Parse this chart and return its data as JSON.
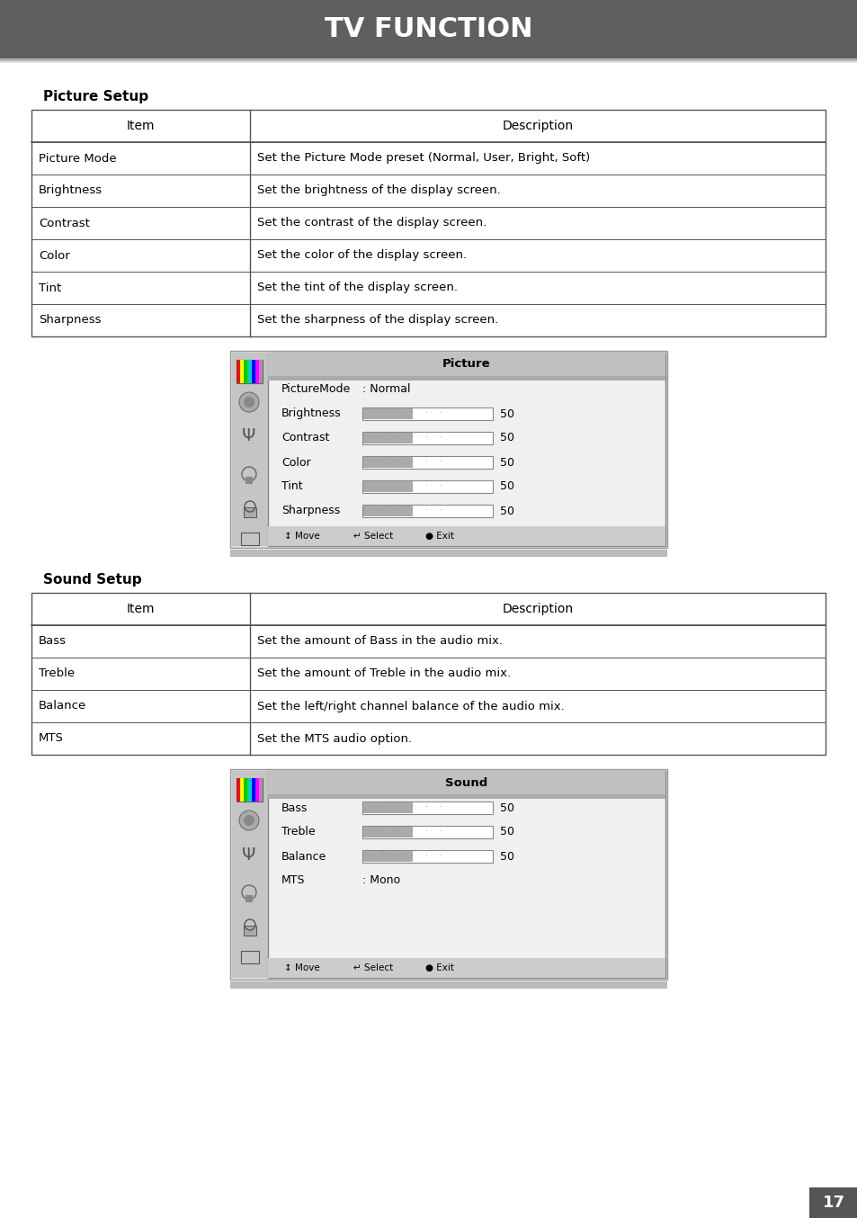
{
  "title": "TV FUNCTION",
  "title_bg": "#5f5f5f",
  "title_color": "#ffffff",
  "page_bg": "#ffffff",
  "page_number": "17",
  "section1_title": "Picture Setup",
  "table1_headers": [
    "Item",
    "Description"
  ],
  "table1_rows": [
    [
      "Picture Mode",
      "Set the Picture Mode preset (Normal, User, Bright, Soft)"
    ],
    [
      "Brightness",
      "Set the brightness of the display screen."
    ],
    [
      "Contrast",
      "Set the contrast of the display screen."
    ],
    [
      "Color",
      "Set the color of the display screen."
    ],
    [
      "Tint",
      "Set the tint of the display screen."
    ],
    [
      "Sharpness",
      "Set the sharpness of the display screen."
    ]
  ],
  "picture_menu_title": "Picture",
  "picture_menu_items": [
    [
      "PictureMode",
      ": Normal",
      ""
    ],
    [
      "Brightness",
      "",
      "50"
    ],
    [
      "Contrast",
      "",
      "50"
    ],
    [
      "Color",
      "",
      "50"
    ],
    [
      "Tint",
      "",
      "50"
    ],
    [
      "Sharpness",
      "",
      "50"
    ]
  ],
  "section2_title": "Sound Setup",
  "table2_headers": [
    "Item",
    "Description"
  ],
  "table2_rows": [
    [
      "Bass",
      "Set the amount of Bass in the audio mix."
    ],
    [
      "Treble",
      "Set the amount of Treble in the audio mix."
    ],
    [
      "Balance",
      "Set the left/right channel balance of the audio mix."
    ],
    [
      "MTS",
      "Set the MTS audio option."
    ]
  ],
  "sound_menu_title": "Sound",
  "sound_menu_items": [
    [
      "Bass",
      "",
      "50"
    ],
    [
      "Treble",
      "",
      "50"
    ],
    [
      "Balance",
      "",
      "50"
    ],
    [
      "MTS",
      ": Mono",
      ""
    ]
  ]
}
